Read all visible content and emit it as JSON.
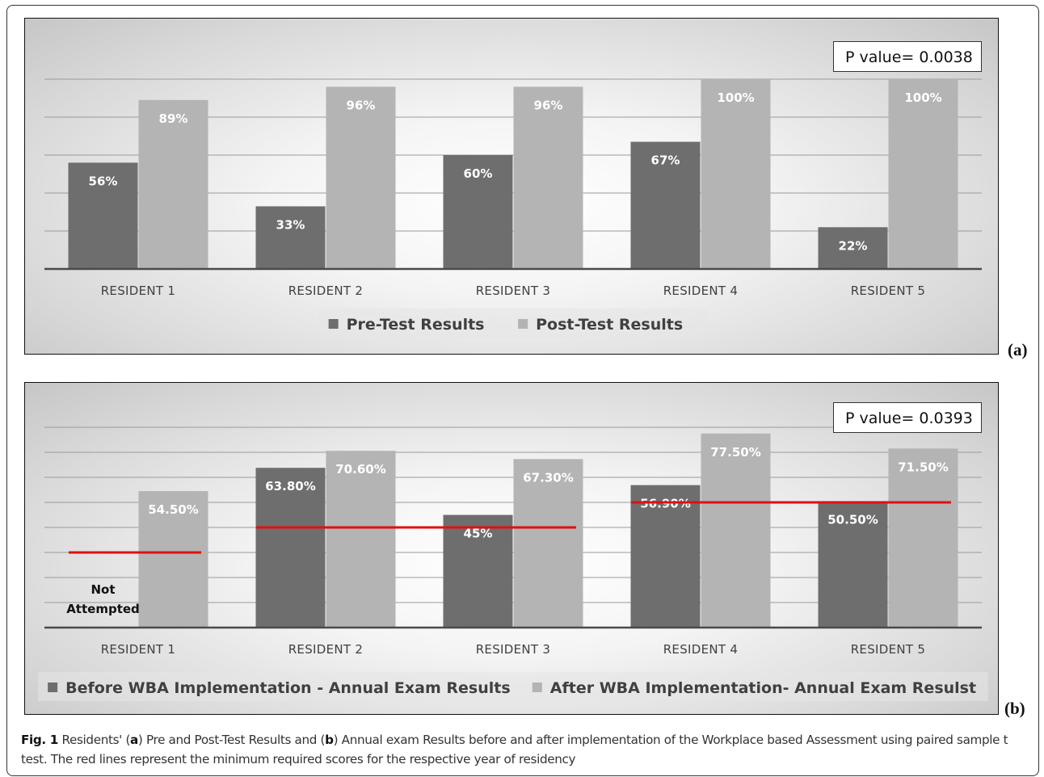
{
  "colors": {
    "pre": "#6e6e6e",
    "post": "#b4b4b4",
    "threshold": "#e01010",
    "gridline": "#9a9a9a",
    "axis": "#4a4a4a"
  },
  "chart_data": [
    {
      "id": "a",
      "type": "bar",
      "panel_tag": "(a)",
      "p_value_text": "P value= 0.0038",
      "categories": [
        "RESIDENT 1",
        "RESIDENT 2",
        "RESIDENT 3",
        "RESIDENT 4",
        "RESIDENT 5"
      ],
      "series": [
        {
          "name": "Pre-Test Results",
          "values": [
            56,
            33,
            60,
            67,
            22
          ],
          "labels": [
            "56%",
            "33%",
            "60%",
            "67%",
            "22%"
          ]
        },
        {
          "name": "Post-Test Results",
          "values": [
            89,
            96,
            96,
            100,
            100
          ],
          "labels": [
            "89%",
            "96%",
            "96%",
            "100%",
            "100%"
          ]
        }
      ],
      "ylim": [
        0,
        100
      ],
      "grid": true,
      "legend_position": "bottom"
    },
    {
      "id": "b",
      "type": "bar",
      "panel_tag": "(b)",
      "p_value_text": "P value= 0.0393",
      "categories": [
        "RESIDENT 1",
        "RESIDENT 2",
        "RESIDENT 3",
        "RESIDENT 4",
        "RESIDENT 5"
      ],
      "series": [
        {
          "name": "Before WBA Implementation - Annual Exam Results",
          "values": [
            null,
            63.8,
            45,
            56.9,
            50.5
          ],
          "labels": [
            "Not Attempted",
            "63.80%",
            "45%",
            "56.90%",
            "50.50%"
          ]
        },
        {
          "name": "After WBA Implementation- Annual Exam Resulst",
          "values": [
            54.5,
            70.6,
            67.3,
            77.5,
            71.5
          ],
          "labels": [
            "54.50%",
            "70.60%",
            "67.30%",
            "77.50%",
            "71.50%"
          ]
        }
      ],
      "thresholds": [
        {
          "categories": [
            1,
            1
          ],
          "value": 30
        },
        {
          "categories": [
            2,
            3
          ],
          "value": 40
        },
        {
          "categories": [
            4,
            5
          ],
          "value": 50
        }
      ],
      "ylim": [
        0,
        80
      ],
      "grid": true,
      "legend_position": "bottom"
    }
  ],
  "caption": {
    "fig_label": "Fig. 1",
    "t1": " Residents' (",
    "a": "a",
    "t2": ") Pre and Post-Test Results and (",
    "b": "b",
    "t3": ") Annual exam Results before and after implementation of the Workplace based Assessment using paired sample t test. The red lines represent the minimum required scores for the respective year of residency"
  }
}
